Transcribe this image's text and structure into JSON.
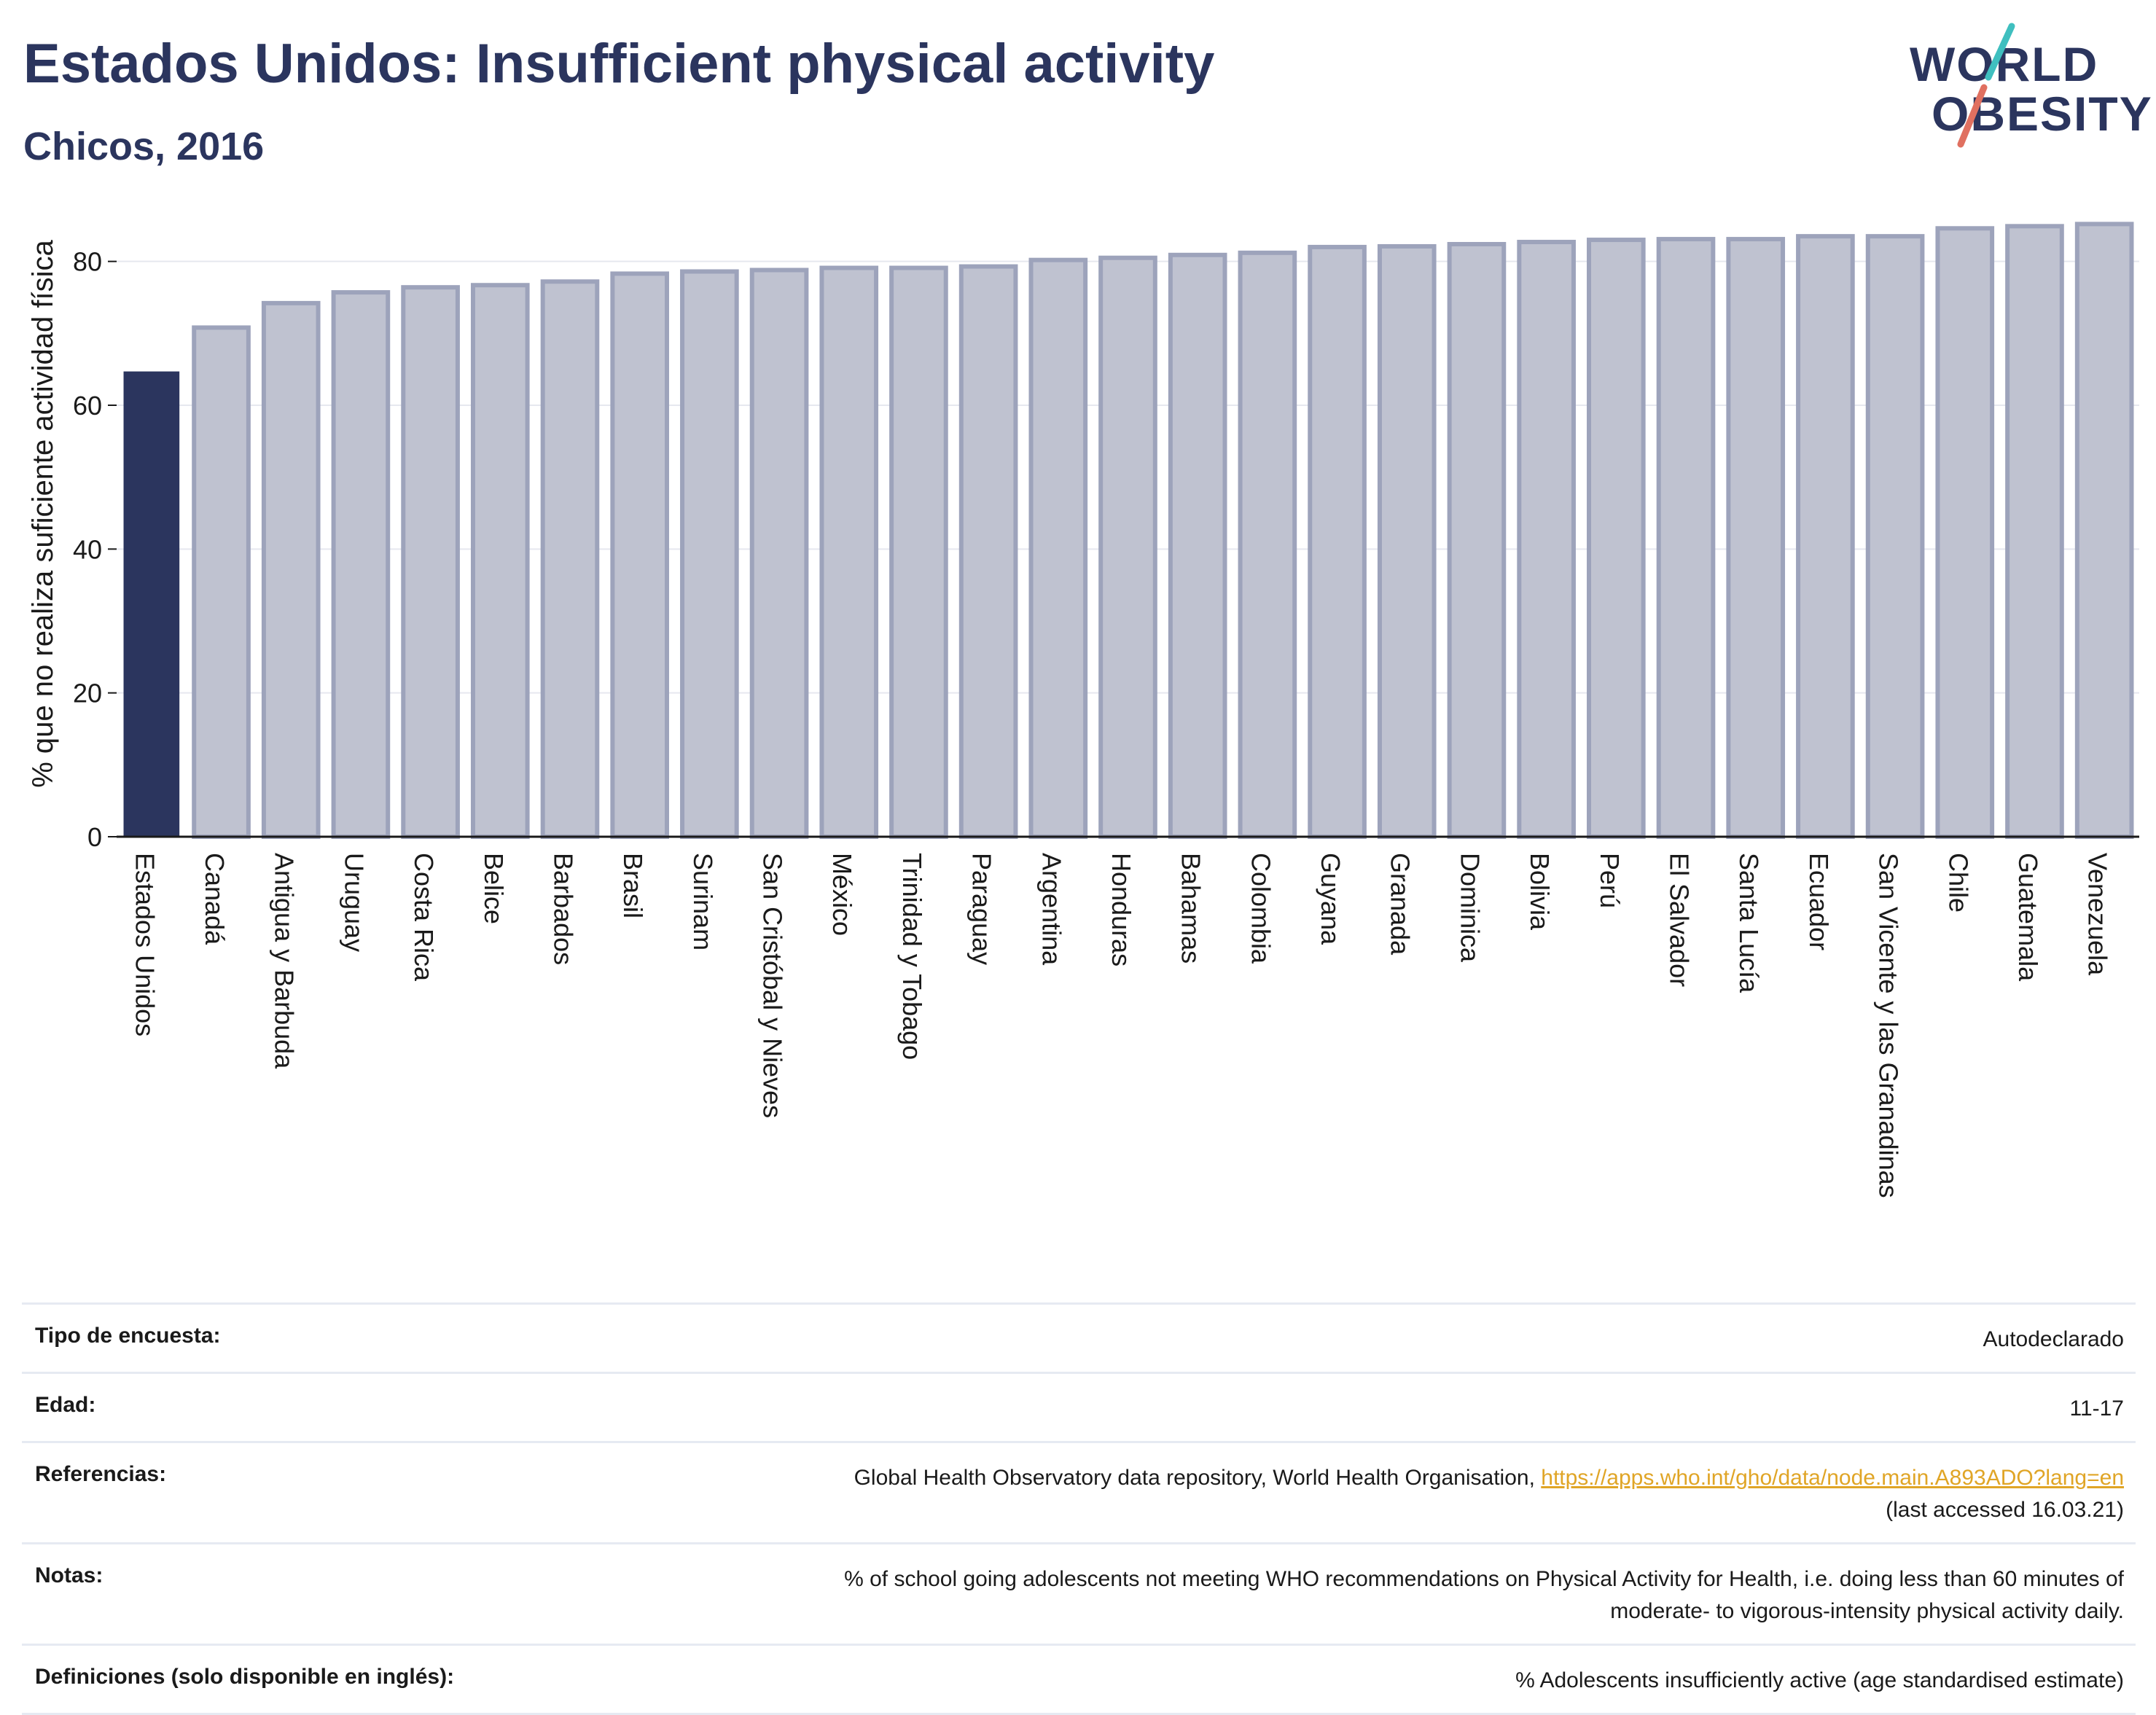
{
  "header": {
    "title": "Estados Unidos: Insufficient physical activity",
    "subtitle": "Chicos, 2016"
  },
  "logo": {
    "line1": "WORLD",
    "line2": "OBESITY",
    "accent_teal": "#3fbfbf",
    "accent_coral": "#e07060"
  },
  "colors": {
    "highlight_bar": "#2b355e",
    "other_bar_fill": "#bfc2d0",
    "other_bar_stroke": "#9da3bb",
    "grid": "#e6e8ef",
    "axis": "#1a1a1a"
  },
  "chart_data": {
    "type": "bar",
    "ylabel": "% que no realiza suficiente actividad física",
    "ylim": [
      0,
      90
    ],
    "yticks": [
      0,
      20,
      40,
      60,
      80
    ],
    "grid": true,
    "highlight": "Estados Unidos",
    "categories": [
      "Estados Unidos",
      "Canadá",
      "Antigua y Barbuda",
      "Uruguay",
      "Costa Rica",
      "Belice",
      "Barbados",
      "Brasil",
      "Surinam",
      "San Cristóbal y Nieves",
      "México",
      "Trinidad y Tobago",
      "Paraguay",
      "Argentina",
      "Honduras",
      "Bahamas",
      "Colombia",
      "Guyana",
      "Granada",
      "Dominica",
      "Bolivia",
      "Perú",
      "El Salvador",
      "Santa Lucía",
      "Ecuador",
      "San Vicente y las Granadinas",
      "Chile",
      "Guatemala",
      "Venezuela"
    ],
    "values": [
      64.6,
      70.8,
      74.2,
      75.7,
      76.4,
      76.7,
      77.2,
      78.3,
      78.6,
      78.8,
      79.1,
      79.1,
      79.3,
      80.2,
      80.5,
      80.9,
      81.2,
      82.0,
      82.1,
      82.4,
      82.7,
      83.0,
      83.1,
      83.1,
      83.5,
      83.5,
      84.6,
      84.9,
      85.2
    ]
  },
  "info": {
    "rows": [
      {
        "label": "Tipo de encuesta:",
        "value": "Autodeclarado"
      },
      {
        "label": "Edad:",
        "value": "11-17"
      },
      {
        "label": "Referencias:",
        "value_text": "Global Health Observatory data repository, World Health Organisation,",
        "link": "https://apps.who.int/gho/data/node.main.A893ADO?lang=en",
        "value_line2": "(last accessed 16.03.21)"
      },
      {
        "label": "Notas:",
        "value": "% of school going adolescents not meeting WHO recommendations on Physical Activity for Health, i.e. doing less than 60 minutes of",
        "value_line2": "moderate- to vigorous-intensity physical activity daily."
      },
      {
        "label": "Definiciones (solo disponible en inglés):",
        "value": "% Adolescents insufficiently active (age standardised estimate)"
      }
    ]
  }
}
